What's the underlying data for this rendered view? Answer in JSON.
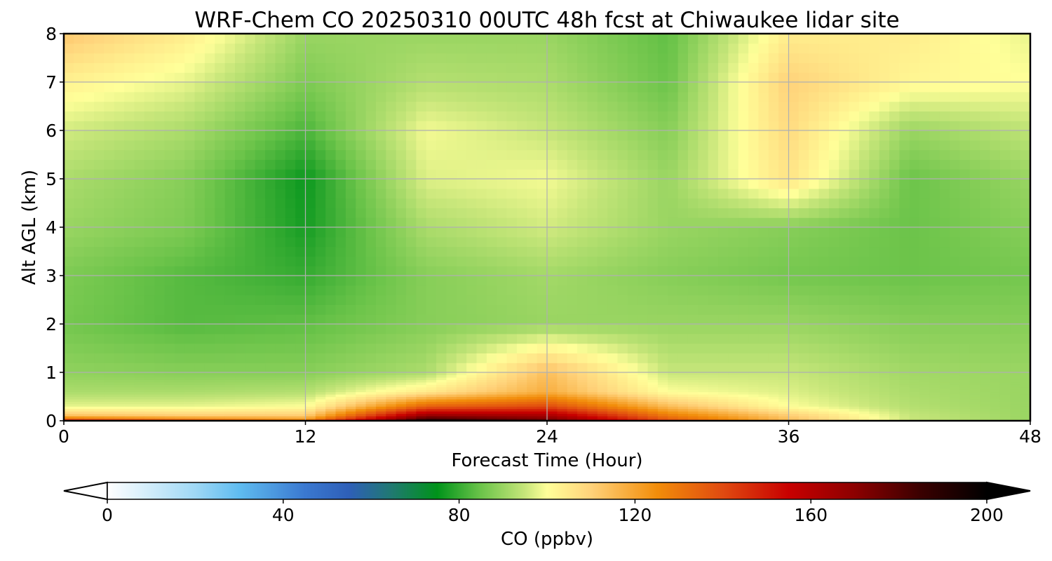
{
  "chart_data": {
    "type": "heatmap",
    "title": "WRF-Chem CO  20250310 00UTC 48h fcst at Chiwaukee lidar site",
    "xlabel": "Forecast Time (Hour)",
    "ylabel": "Alt AGL (km)",
    "xlim": [
      0,
      48
    ],
    "ylim": [
      0,
      8
    ],
    "xticks": [
      "0",
      "12",
      "24",
      "36",
      "48"
    ],
    "yticks": [
      "0",
      "1",
      "2",
      "3",
      "4",
      "5",
      "6",
      "7",
      "8"
    ],
    "grid": true,
    "colorbar": {
      "label": "CO  (ppbv)",
      "min": 0,
      "max": 200,
      "extend": "both",
      "ticks": [
        "0",
        "40",
        "80",
        "120",
        "160",
        "200"
      ],
      "color_stops": [
        {
          "value": 0,
          "color": "#ffffff"
        },
        {
          "value": 20,
          "color": "#9fd8f5"
        },
        {
          "value": 30,
          "color": "#5fbcf0"
        },
        {
          "value": 45,
          "color": "#3a78d0"
        },
        {
          "value": 55,
          "color": "#2e5fb8"
        },
        {
          "value": 65,
          "color": "#1f7a6e"
        },
        {
          "value": 75,
          "color": "#00931a"
        },
        {
          "value": 85,
          "color": "#6cc44a"
        },
        {
          "value": 95,
          "color": "#c7e67a"
        },
        {
          "value": 100,
          "color": "#ffff99"
        },
        {
          "value": 110,
          "color": "#ffd27a"
        },
        {
          "value": 125,
          "color": "#f28d0a"
        },
        {
          "value": 140,
          "color": "#e04a10"
        },
        {
          "value": 155,
          "color": "#c80000"
        },
        {
          "value": 170,
          "color": "#8c0000"
        },
        {
          "value": 185,
          "color": "#3a0000"
        },
        {
          "value": 200,
          "color": "#000000"
        }
      ]
    },
    "field": {
      "x": [
        0,
        6,
        12,
        18,
        24,
        30,
        36,
        42,
        48
      ],
      "y": [
        0,
        0.1,
        0.3,
        0.6,
        1,
        2,
        3,
        4,
        5,
        6,
        7,
        8
      ],
      "z": [
        [
          150,
          140,
          130,
          195,
          180,
          140,
          115,
          95,
          90
        ],
        [
          115,
          112,
          112,
          170,
          165,
          130,
          112,
          95,
          90
        ],
        [
          98,
          98,
          100,
          135,
          140,
          115,
          100,
          93,
          90
        ],
        [
          92,
          92,
          93,
          105,
          118,
          100,
          97,
          92,
          90
        ],
        [
          89,
          88,
          88,
          92,
          114,
          95,
          95,
          91,
          90
        ],
        [
          86,
          83,
          84,
          88,
          90,
          90,
          90,
          88,
          88
        ],
        [
          87,
          83,
          80,
          88,
          91,
          88,
          86,
          85,
          86
        ],
        [
          90,
          87,
          77,
          92,
          96,
          90,
          88,
          85,
          88
        ],
        [
          92,
          88,
          76,
          97,
          99,
          90,
          106,
          85,
          90
        ],
        [
          96,
          92,
          82,
          99,
          95,
          88,
          108,
          90,
          94
        ],
        [
          103,
          98,
          87,
          93,
          92,
          85,
          110,
          102,
          100
        ],
        [
          112,
          104,
          90,
          90,
          90,
          84,
          104,
          104,
          98
        ]
      ]
    }
  }
}
